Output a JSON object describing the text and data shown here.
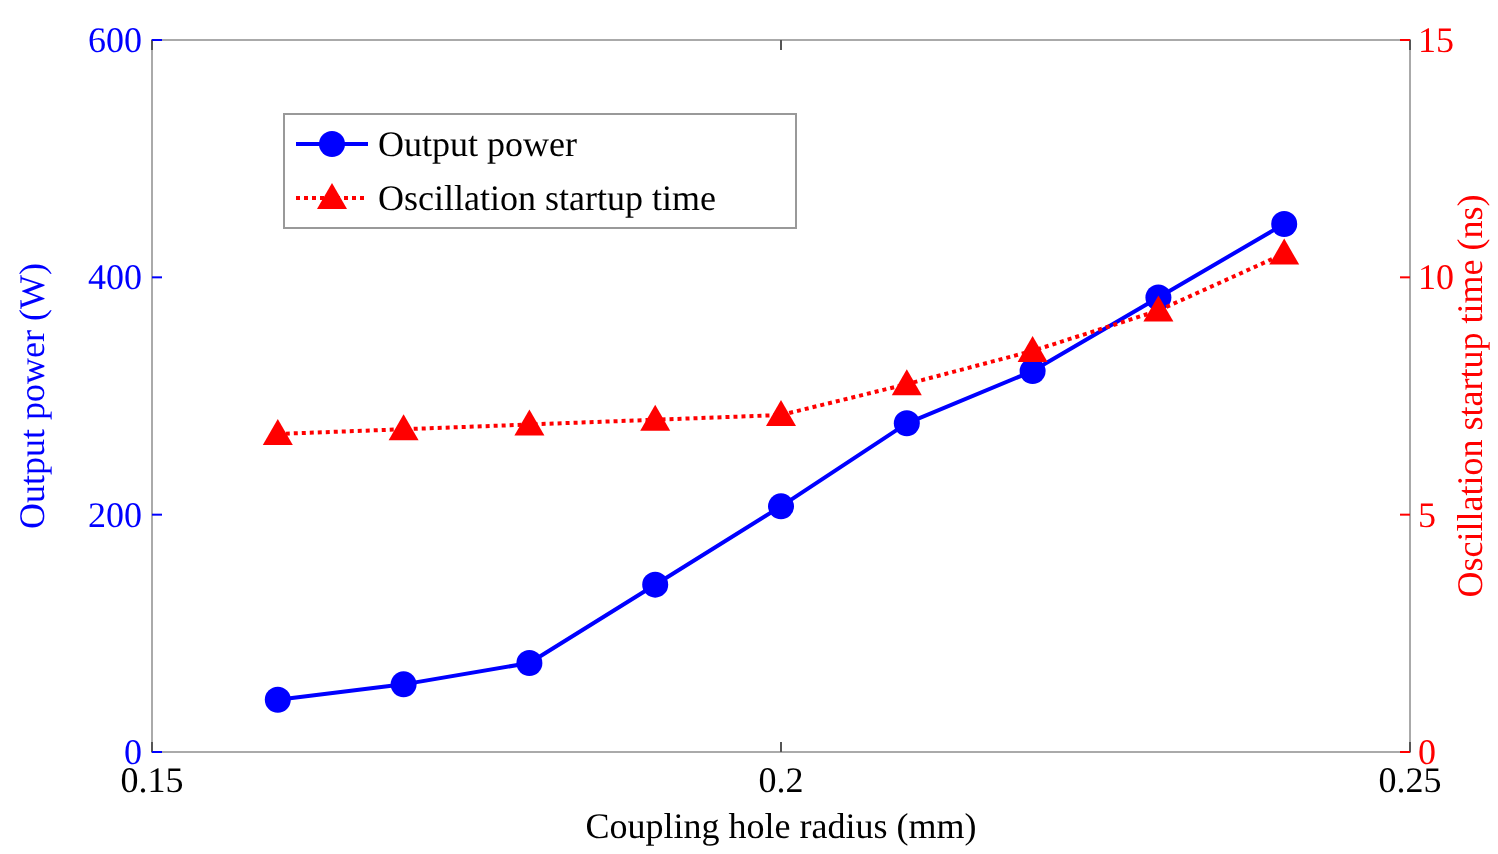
{
  "chart_data": {
    "type": "line",
    "xlabel": "Coupling hole radius (mm)",
    "ylabel": "Output power (W)",
    "y2label": "Oscillation startup time (ns)",
    "x": [
      0.16,
      0.17,
      0.18,
      0.19,
      0.2,
      0.21,
      0.22,
      0.23,
      0.24
    ],
    "xlim": [
      0.15,
      0.25
    ],
    "xticks": [
      0.15,
      0.2,
      0.25
    ],
    "ylim": [
      0,
      600
    ],
    "yticks": [
      0,
      200,
      400,
      600
    ],
    "y2lim": [
      0,
      15
    ],
    "y2ticks": [
      0,
      5,
      10,
      15
    ],
    "grid": false,
    "legend": "top left",
    "series": [
      {
        "name": "Output power",
        "color": "#0000ff",
        "marker": "circle",
        "line_style": "solid",
        "values": [
          44,
          57,
          75,
          141,
          207,
          277,
          321,
          383,
          445
        ]
      },
      {
        "name": "Oscillation startup time",
        "color": "#ff0000",
        "marker": "triangle",
        "line_style": "dotted",
        "axis": "y2",
        "values": [
          6.7,
          6.8,
          6.9,
          7.0,
          7.1,
          7.75,
          8.45,
          9.3,
          10.5
        ]
      }
    ]
  }
}
